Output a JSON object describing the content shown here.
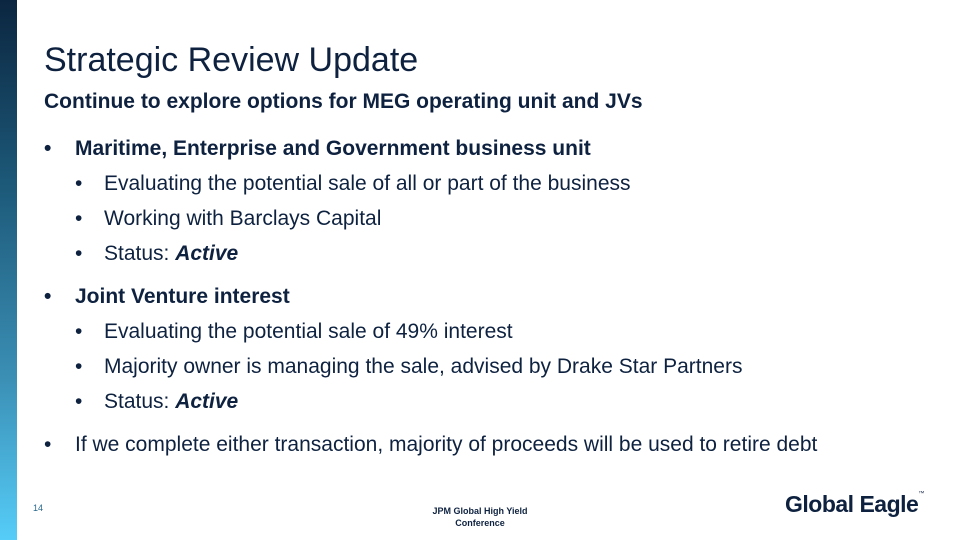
{
  "title": "Strategic Review Update",
  "subtitle": "Continue to explore options for MEG operating unit and JVs",
  "bullets": [
    {
      "text": "Maritime, Enterprise and Government business unit",
      "children": [
        {
          "text": "Evaluating the potential sale of all or part of the business"
        },
        {
          "text": "Working with Barclays Capital"
        },
        {
          "text": "Status: ",
          "emph": "Active"
        }
      ]
    },
    {
      "text": "Joint Venture interest",
      "children": [
        {
          "text": "Evaluating the potential sale of 49% interest"
        },
        {
          "text": "Majority owner is managing the sale, advised by Drake Star Partners"
        },
        {
          "text": "Status: ",
          "emph": "Active"
        }
      ]
    },
    {
      "text": "If we complete either transaction, majority of proceeds will be used to retire debt"
    }
  ],
  "bullet_glyph": "•",
  "footer": {
    "page_number": "14",
    "event_line1": "JPM Global High Yield",
    "event_line2": "Conference",
    "logo": "Global Eagle",
    "logo_tm": "™"
  },
  "colors": {
    "text": "#0e2240",
    "bar_top": "#0b2640",
    "bar_bottom": "#55cdf8"
  }
}
